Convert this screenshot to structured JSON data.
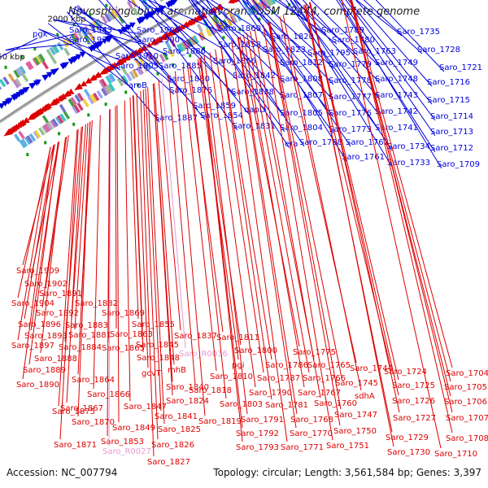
{
  "title": "Novosphingobium aromaticivorans DSM 12444, complete genome",
  "footer": {
    "accession": "Accession: NC_007794",
    "stats": "Topology: circular; Length: 3,561,584 bp; Genes: 3,397"
  },
  "colors": {
    "forward": "#0000dd",
    "reverse": "#dd0000",
    "rna": "#e79ad6",
    "backbone": "#999999"
  },
  "kbp_labels": [
    "2050 kbp",
    "2000 kbp",
    "1950 kbp",
    "1900 kbp",
    "1850 kbp",
    "1800 kbp"
  ],
  "top_labels": [
    "pgk",
    "Saro_1943",
    "Saro_1937",
    "Saro_1906",
    "Saro_1900",
    "Saro_1910",
    "Saro_1905",
    "Saro_1886",
    "Saro_1885",
    "aroB",
    "Saro_1880",
    "Saro_1876",
    "Saro_1887",
    "Saro_1860",
    "Saro_1858",
    "Saro_1856",
    "Saro_1842",
    "Saro_1838",
    "Saro_1859",
    "Saro_1854",
    "dapD",
    "Saro_1831",
    "Saro_1820",
    "Saro_1823",
    "Saro_1812",
    "Saro_1808",
    "Saro_1807",
    "Saro_1805",
    "Saro_1804",
    "era",
    "Saro_1789",
    "Saro_1780",
    "Saro_1795",
    "Saro_1779",
    "Saro_1778",
    "Saro_1777",
    "Saro_1776",
    "Saro_1773",
    "Saro_1788",
    "Saro_1763",
    "Saro_1762",
    "Saro_1761",
    "Saro_1735",
    "Saro_1728",
    "Saro_1749",
    "Saro_1748",
    "Saro_1743",
    "Saro_1742",
    "Saro_1741",
    "Saro_1734",
    "Saro_1733",
    "Saro_1721",
    "Saro_1716",
    "Saro_1715",
    "Saro_1714",
    "Saro_1713",
    "Saro_1712",
    "Saro_1709"
  ],
  "bottom_labels": [
    "Saro_1909",
    "Saro_1902",
    "Saro_1891",
    "Saro_1904",
    "Saro_1892",
    "Saro_1882",
    "Saro_1896",
    "Saro_1883",
    "Saro_1869",
    "Saro_1893",
    "Saro_1881",
    "Saro_1855",
    "Saro_1897",
    "Saro_1884",
    "Saro_1863",
    "Saro_1865",
    "Saro_1845",
    "Saro_1837",
    "Saro_R0036",
    "Saro_1888",
    "Saro_1848",
    "mhB",
    "Saro_1889",
    "Saro_1811",
    "Saro_1800",
    "Saro_1775",
    "gcvT",
    "Saro_1864",
    "pgi",
    "Saro_1786",
    "Saro_1765",
    "Saro_1744",
    "Saro_1724",
    "Saro_1704",
    "Saro_1890",
    "Saro_1840",
    "Saro_1818",
    "Saro_1810",
    "Saro_1787",
    "Saro_1766",
    "Saro_1745",
    "Saro_1866",
    "Saro_1847",
    "Saro_1824",
    "Saro_1790",
    "Saro_1767",
    "sdhA",
    "Saro_1725",
    "Saro_1705",
    "Saro_1867",
    "Saro_1841",
    "Saro_1803",
    "Saro_1781",
    "Saro_1760",
    "Saro_1726",
    "Saro_1706",
    "Saro_1875",
    "Saro_1849",
    "Saro_1825",
    "Saro_1791",
    "Saro_1768",
    "Saro_1747",
    "Saro_1727",
    "Saro_1707",
    "Saro_1870",
    "Saro_1819",
    "Saro_1792",
    "Saro_1770",
    "Saro_1750",
    "Saro_1729",
    "Saro_1708",
    "Saro_1871",
    "Saro_1853",
    "Saro_1826",
    "Saro_1793",
    "Saro_1771",
    "Saro_1751",
    "Saro_1730",
    "Saro_1710",
    "Saro_R0027",
    "Saro_1827"
  ]
}
